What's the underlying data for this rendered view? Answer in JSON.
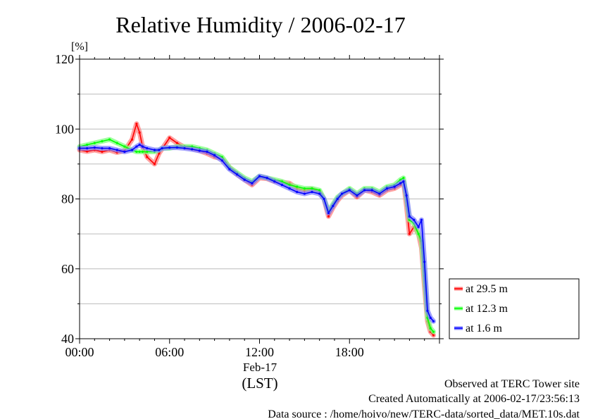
{
  "chart_data": {
    "type": "line",
    "title": "Relative Humidity / 2006-02-17",
    "y_unit": "[%]",
    "xlabel_date": "Feb-17",
    "xlabel_tz": "(LST)",
    "xlim": [
      0,
      24
    ],
    "ylim": [
      40,
      120
    ],
    "x_ticks": [
      {
        "value": 0,
        "label": "00:00"
      },
      {
        "value": 6,
        "label": "06:00"
      },
      {
        "value": 12,
        "label": "12:00"
      },
      {
        "value": 18,
        "label": "18:00"
      }
    ],
    "y_ticks": [
      {
        "value": 40,
        "label": "40"
      },
      {
        "value": 60,
        "label": "60"
      },
      {
        "value": 80,
        "label": "80"
      },
      {
        "value": 100,
        "label": "100"
      },
      {
        "value": 120,
        "label": "120"
      }
    ],
    "y_minor_ticks": [
      50,
      70,
      90,
      110
    ],
    "grid": true,
    "legend_position": "right-bottom",
    "x": [
      0.0,
      0.5,
      1.0,
      1.5,
      2.0,
      2.5,
      3.0,
      3.5,
      3.8,
      4.0,
      4.2,
      4.5,
      5.0,
      5.3,
      5.5,
      6.0,
      6.5,
      7.0,
      7.5,
      8.0,
      8.5,
      9.0,
      9.5,
      10.0,
      10.5,
      11.0,
      11.5,
      12.0,
      12.5,
      13.0,
      13.5,
      14.0,
      14.5,
      15.0,
      15.5,
      16.0,
      16.3,
      16.6,
      16.9,
      17.2,
      17.5,
      18.0,
      18.5,
      19.0,
      19.5,
      20.0,
      20.5,
      21.0,
      21.4,
      21.6,
      21.8,
      22.0,
      22.3,
      22.6,
      22.8,
      23.0,
      23.2,
      23.4,
      23.6
    ],
    "series": [
      {
        "name": "at 29.5 m",
        "color": "#ff0000",
        "values": [
          94.0,
          93.6,
          94.0,
          93.5,
          94.0,
          93.3,
          93.8,
          97.0,
          101.5,
          99.0,
          95.0,
          92.0,
          90.0,
          93.0,
          94.3,
          97.5,
          96.0,
          94.8,
          94.5,
          93.8,
          93.0,
          92.0,
          91.5,
          89.0,
          87.0,
          85.5,
          84.0,
          86.0,
          85.8,
          85.0,
          84.8,
          84.5,
          83.0,
          82.5,
          82.8,
          82.0,
          80.0,
          75.0,
          77.5,
          79.5,
          81.0,
          82.5,
          80.5,
          82.5,
          82.0,
          81.0,
          82.5,
          83.0,
          84.0,
          85.0,
          78.0,
          70.0,
          72.0,
          70.0,
          66.0,
          55.0,
          45.0,
          42.0,
          41.0
        ]
      },
      {
        "name": "at 12.3 m",
        "color": "#00ff00",
        "values": [
          95.0,
          95.5,
          96.0,
          96.5,
          97.0,
          96.0,
          95.0,
          94.0,
          93.5,
          93.5,
          93.5,
          93.5,
          93.5,
          94.0,
          94.5,
          94.5,
          95.0,
          95.0,
          95.0,
          94.5,
          94.0,
          93.0,
          92.0,
          89.0,
          87.5,
          86.0,
          85.0,
          86.5,
          86.0,
          85.5,
          85.0,
          84.0,
          83.5,
          83.0,
          83.0,
          82.5,
          80.0,
          76.5,
          78.5,
          80.5,
          81.5,
          83.0,
          81.5,
          83.0,
          83.0,
          82.0,
          83.5,
          84.0,
          85.5,
          86.0,
          80.0,
          74.0,
          73.0,
          70.0,
          68.0,
          58.0,
          46.0,
          43.0,
          42.0
        ]
      },
      {
        "name": "at 1.6 m",
        "color": "#0000ff",
        "values": [
          94.5,
          94.5,
          94.7,
          94.5,
          94.5,
          94.0,
          93.5,
          94.0,
          95.0,
          95.5,
          95.0,
          94.5,
          94.0,
          94.0,
          94.5,
          94.7,
          94.7,
          94.5,
          94.2,
          93.8,
          93.5,
          92.5,
          91.0,
          88.5,
          87.0,
          85.5,
          84.5,
          86.5,
          86.0,
          85.0,
          84.0,
          83.0,
          82.0,
          81.5,
          82.0,
          81.5,
          80.0,
          76.0,
          78.0,
          80.0,
          81.5,
          82.5,
          81.0,
          82.5,
          82.5,
          81.5,
          83.0,
          83.5,
          84.5,
          85.0,
          81.0,
          75.0,
          74.0,
          72.0,
          74.0,
          62.0,
          48.0,
          46.0,
          45.0
        ]
      }
    ]
  },
  "footer": {
    "line1": "Observed at TERC Tower site",
    "line2": "Created Automatically at 2006-02-17/23:56:13",
    "line3": "Data source : /home/hoivo/new/TERC-data/sorted_data/MET.10s.dat"
  }
}
